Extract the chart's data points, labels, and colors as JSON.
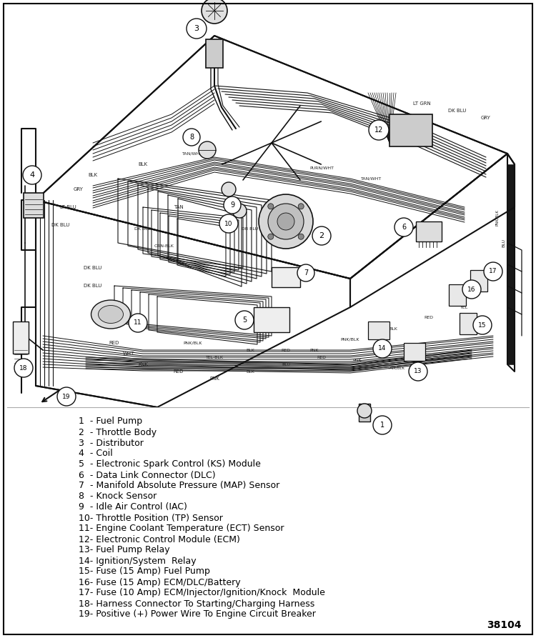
{
  "figure_width": 7.5,
  "figure_height": 8.93,
  "dpi": 100,
  "background_color": "#ffffff",
  "border_color": "#000000",
  "diagram_label": "38104",
  "legend_items": [
    "1  - Fuel Pump",
    "2  - Throttle Body",
    "3  - Distributor",
    "4  - Coil",
    "5  - Electronic Spark Control (KS) Module",
    "6  - Data Link Connector (DLC)",
    "7  - Manifold Absolute Pressure (MAP) Sensor",
    "8  - Knock Sensor",
    "9  - Idle Air Control (IAC)",
    "10- Throttle Position (TP) Sensor",
    "11- Engine Coolant Temperature (ECT) Sensor",
    "12- Electronic Control Module (ECM)",
    "13- Fuel Pump Relay",
    "14- Ignition/System  Relay",
    "15- Fuse (15 Amp) Fuel Pump",
    "16- Fuse (15 Amp) ECM/DLC/Battery",
    "17- Fuse (10 Amp) ECM/Injector/Ignition/Knock  Module",
    "18- Harness Connector To Starting/Charging Harness",
    "19- Positive (+) Power Wire To Engine Circuit Breaker"
  ],
  "font_size": 9.0,
  "font_color": "#000000",
  "wire_color": "#111111",
  "component_edge": "#111111",
  "component_face": "#ffffff",
  "label_face": "#ffffff",
  "label_edge": "#111111"
}
